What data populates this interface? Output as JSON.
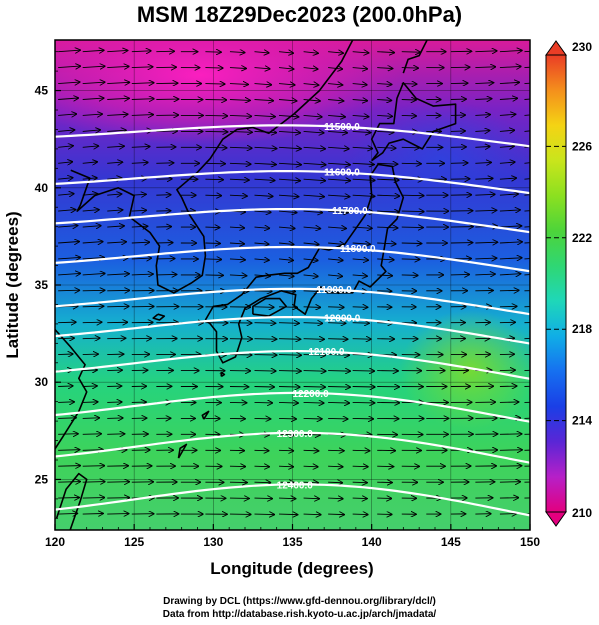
{
  "title": "MSM 18Z29Dec2023 (200.0hPa)",
  "credits": {
    "line1": "Drawing by DCL (https://www.gfd-dennou.org/library/dcl/)",
    "line2": "Data from http://database.rish.kyoto-u.ac.jp/arch/jmadata/"
  },
  "chart_data": {
    "type": "heatmap",
    "title": "MSM 18Z29Dec2023 (200.0hPa)",
    "xlabel": "Longitude (degrees)",
    "ylabel": "Latitude  (degrees)",
    "xlim": [
      120,
      150
    ],
    "ylim": [
      22.4,
      47.6
    ],
    "x_ticks": [
      "120",
      "125",
      "130",
      "135",
      "140",
      "145",
      "150"
    ],
    "y_ticks": [
      "25",
      "30",
      "35",
      "40",
      "45"
    ],
    "colorbar": {
      "range": [
        210,
        230
      ],
      "tick_labels": [
        "230",
        "226",
        "222",
        "218",
        "214",
        "210"
      ],
      "colors": [
        "#e3007f",
        "#b620c8",
        "#5a26d6",
        "#1a3fe6",
        "#1670f0",
        "#10aee6",
        "#1fd7b8",
        "#2fd774",
        "#4dd43a",
        "#8ce020",
        "#c9e51c",
        "#f4d314",
        "#f48f1c",
        "#ea3d26"
      ]
    },
    "contours": [
      {
        "label": "11500.0",
        "lat": 43.0
      },
      {
        "label": "11600.0",
        "lat": 40.6
      },
      {
        "label": "11700.0",
        "lat": 38.6
      },
      {
        "label": "11800.0",
        "lat": 36.6
      },
      {
        "label": "11900.0",
        "lat": 34.4
      },
      {
        "label": "12000.0",
        "lat": 32.9
      },
      {
        "label": "12100.0",
        "lat": 31.1
      },
      {
        "label": "12200.0",
        "lat": 28.9
      },
      {
        "label": "12300.0",
        "lat": 26.8
      },
      {
        "label": "12400.0",
        "lat": 24.1
      }
    ],
    "wind": "westerly",
    "grid": true
  }
}
